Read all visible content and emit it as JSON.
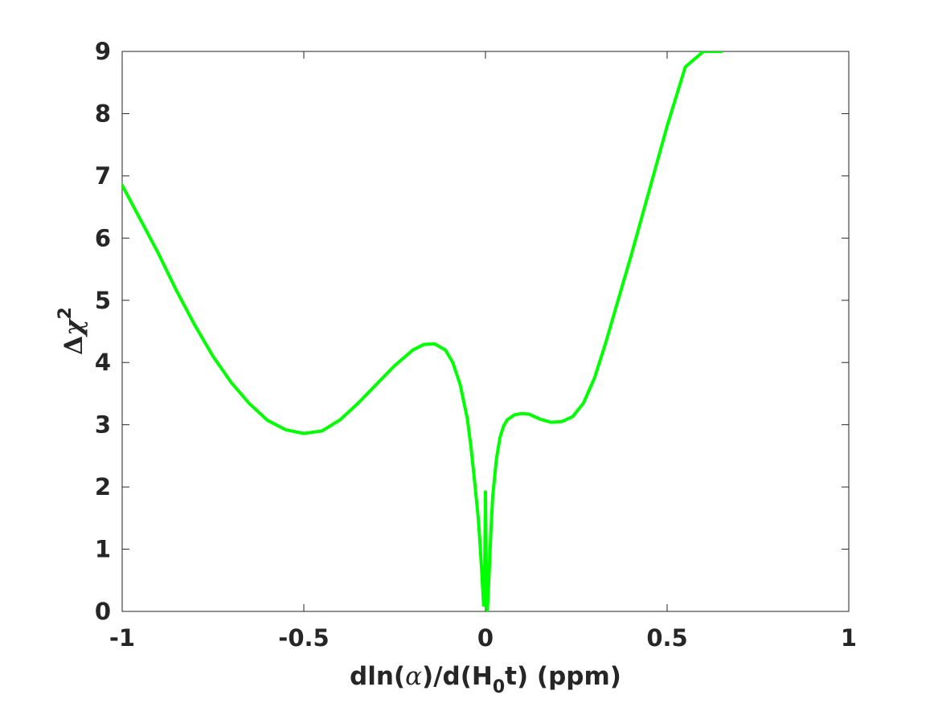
{
  "chart_data": {
    "type": "line",
    "title": "",
    "xlabel": "dln(α)/d(H₀t) (ppm)",
    "xlabel_parts": {
      "pre": "dln(",
      "alpha": "α",
      "mid": ")/d(H",
      "sub": "0",
      "post": "t) (ppm)"
    },
    "ylabel": "Δχ²",
    "ylabel_parts": {
      "delta": "Δ",
      "chi": "χ",
      "sup": "2"
    },
    "xlim": [
      -1,
      1
    ],
    "ylim": [
      0,
      9
    ],
    "xticks": [
      -1,
      -0.5,
      0,
      0.5,
      1
    ],
    "xtick_labels": [
      "-1",
      "-0.5",
      "0",
      "0.5",
      "1"
    ],
    "yticks": [
      0,
      1,
      2,
      3,
      4,
      5,
      6,
      7,
      8,
      9
    ],
    "ytick_labels": [
      "0",
      "1",
      "2",
      "3",
      "4",
      "5",
      "6",
      "7",
      "8",
      "9"
    ],
    "grid": false,
    "series": [
      {
        "color": "#00ff00",
        "x": [
          -1.0,
          -0.95,
          -0.9,
          -0.85,
          -0.8,
          -0.75,
          -0.7,
          -0.65,
          -0.6,
          -0.55,
          -0.5,
          -0.45,
          -0.4,
          -0.35,
          -0.3,
          -0.25,
          -0.2,
          -0.17,
          -0.14,
          -0.11,
          -0.09,
          -0.07,
          -0.05,
          -0.04,
          -0.03,
          -0.02,
          -0.015,
          -0.01,
          -0.005,
          -0.003,
          0.0,
          0.003,
          0.005,
          0.01,
          0.015,
          0.02,
          0.03,
          0.04,
          0.05,
          0.06,
          0.08,
          0.1,
          0.12,
          0.15,
          0.18,
          0.21,
          0.24,
          0.27,
          0.3,
          0.33,
          0.36,
          0.4,
          0.45,
          0.5,
          0.55,
          0.6,
          0.65
        ],
        "values": [
          6.85,
          6.3,
          5.75,
          5.15,
          4.6,
          4.1,
          3.68,
          3.34,
          3.07,
          2.92,
          2.86,
          2.9,
          3.08,
          3.35,
          3.65,
          3.95,
          4.2,
          4.29,
          4.3,
          4.2,
          4.0,
          3.65,
          3.1,
          2.65,
          2.1,
          1.5,
          1.1,
          0.6,
          0.1,
          0.12,
          1.92,
          0.25,
          0.0,
          0.6,
          1.3,
          1.85,
          2.45,
          2.8,
          2.98,
          3.08,
          3.16,
          3.18,
          3.17,
          3.09,
          3.04,
          3.05,
          3.13,
          3.35,
          3.75,
          4.3,
          4.9,
          5.7,
          6.75,
          7.8,
          8.75,
          9.0,
          9.0
        ]
      }
    ]
  }
}
